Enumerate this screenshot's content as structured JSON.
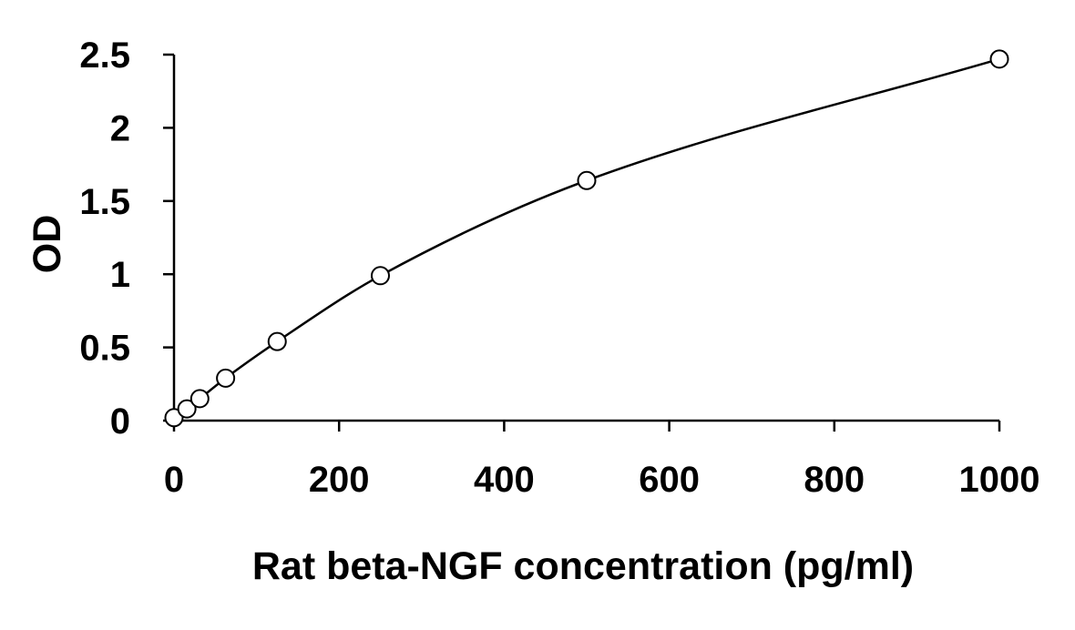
{
  "chart_data": {
    "type": "scatter",
    "title": "",
    "xlabel": "Rat beta-NGF concentration (pg/ml)",
    "ylabel": "OD",
    "xlim": [
      0,
      1000
    ],
    "ylim": [
      0,
      2.5
    ],
    "x_ticks": [
      0,
      200,
      400,
      600,
      800,
      1000
    ],
    "x_tick_labels": [
      "0",
      "200",
      "400",
      "600",
      "800",
      "1000"
    ],
    "y_ticks": [
      0,
      0.5,
      1,
      1.5,
      2,
      2.5
    ],
    "y_tick_labels": [
      "0",
      "0.5",
      "1",
      "1.5",
      "2",
      "2.5"
    ],
    "grid": false,
    "legend": "none",
    "series": [
      {
        "marker": "open-circle",
        "fit": "smooth-curve",
        "color": "#000000",
        "x": [
          0,
          15.6,
          31.25,
          62.5,
          125,
          250,
          500,
          1000
        ],
        "y": [
          0.02,
          0.08,
          0.15,
          0.29,
          0.54,
          0.99,
          1.64,
          2.47
        ]
      }
    ]
  }
}
